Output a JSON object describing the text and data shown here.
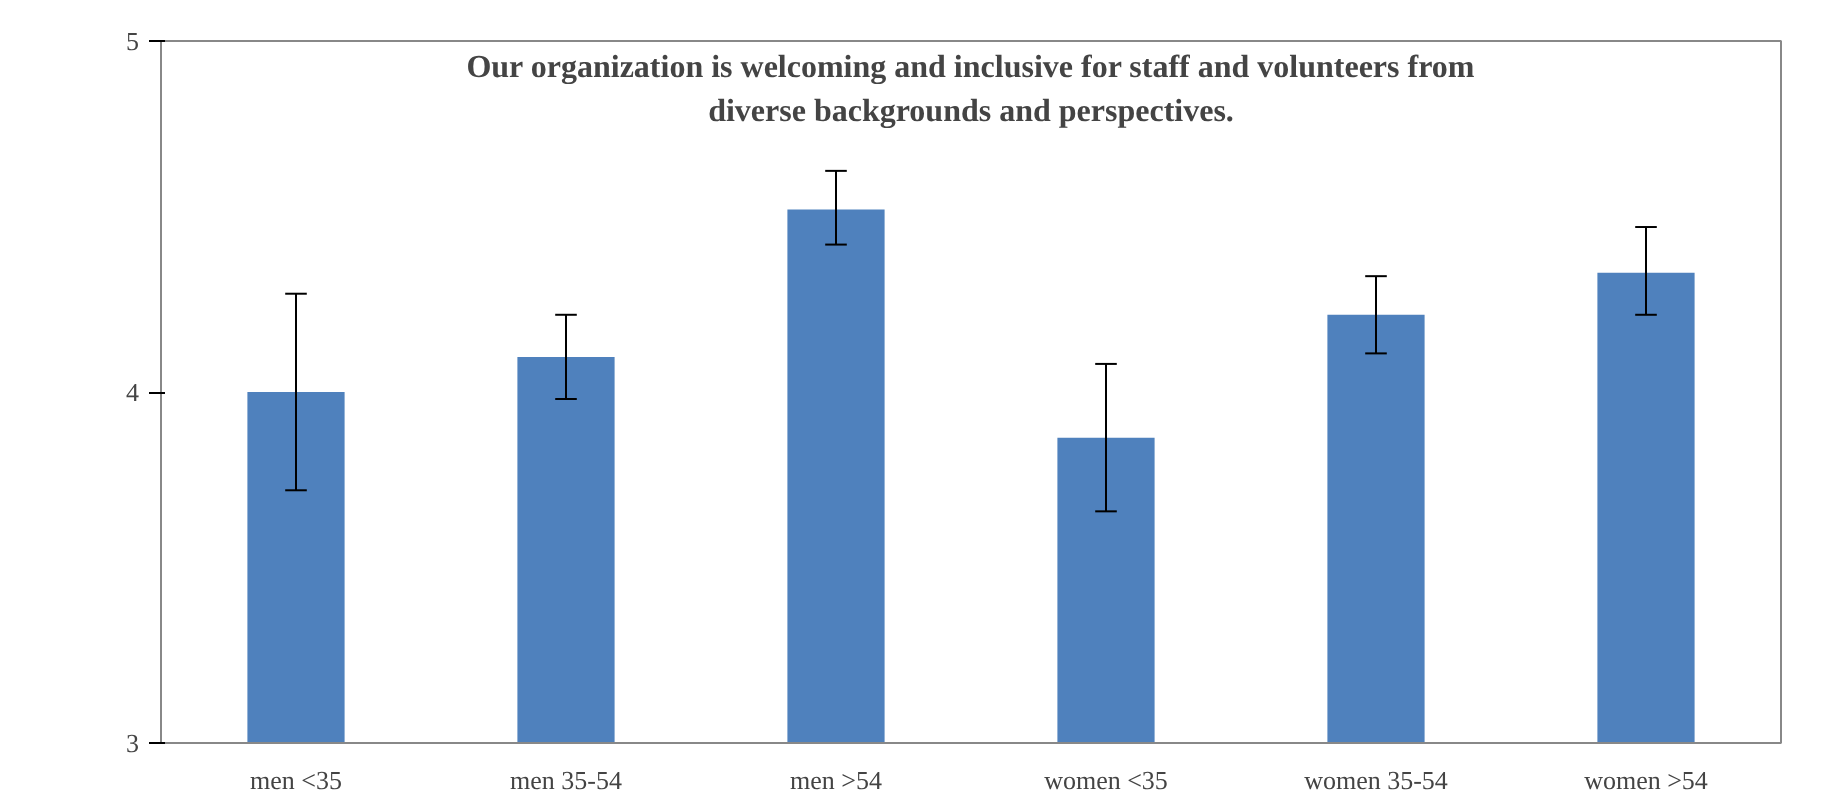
{
  "chart_data": {
    "type": "bar",
    "title": "Our organization is welcoming and inclusive for staff and volunteers from\ndiverse backgrounds and perspectives.",
    "categories": [
      "men <35",
      "men 35-54",
      "men >54",
      "women <35",
      "women 35-54",
      "women >54"
    ],
    "values": [
      4.0,
      4.1,
      4.52,
      3.87,
      4.22,
      4.34
    ],
    "errors": [
      [
        3.72,
        4.28
      ],
      [
        3.98,
        4.22
      ],
      [
        4.42,
        4.63
      ],
      [
        3.66,
        4.08
      ],
      [
        4.11,
        4.33
      ],
      [
        4.22,
        4.47
      ]
    ],
    "color": "#4f81bd",
    "ylim": [
      3,
      5
    ],
    "yticks": [
      3,
      4,
      5
    ],
    "grid": false
  }
}
